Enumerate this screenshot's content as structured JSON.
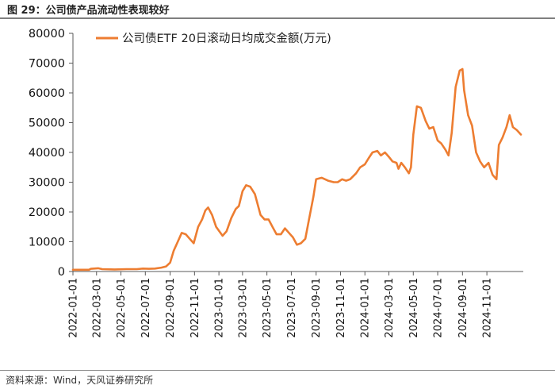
{
  "figure_title": "图 29：公司债产品流动性表现较好",
  "source_note": "资料来源：Wind，天风证券研究所",
  "chart_data": {
    "type": "line",
    "title": "",
    "xlabel": "",
    "ylabel": "",
    "ylim": [
      0,
      80000
    ],
    "yticks": [
      0,
      10000,
      20000,
      30000,
      40000,
      50000,
      60000,
      70000,
      80000
    ],
    "xlim": [
      "2022-01-01",
      "2025-01-31"
    ],
    "xticks": [
      "2022-01-01",
      "2022-03-01",
      "2022-05-01",
      "2022-07-01",
      "2022-09-01",
      "2022-11-01",
      "2023-01-01",
      "2023-03-01",
      "2023-05-01",
      "2023-07-01",
      "2023-09-01",
      "2023-11-01",
      "2024-01-01",
      "2024-03-01",
      "2024-05-01",
      "2024-07-01",
      "2024-09-01",
      "2024-11-01"
    ],
    "grid": false,
    "legend_position": "top",
    "series": [
      {
        "name": "公司债ETF 20日滚动日均成交金额(万元)",
        "color": "#ED7D31",
        "x": [
          "2022-01-01",
          "2022-02-10",
          "2022-02-15",
          "2022-03-05",
          "2022-03-15",
          "2022-04-15",
          "2022-05-15",
          "2022-06-10",
          "2022-06-25",
          "2022-07-10",
          "2022-07-25",
          "2022-08-10",
          "2022-08-22",
          "2022-09-01",
          "2022-09-10",
          "2022-09-20",
          "2022-09-30",
          "2022-10-10",
          "2022-10-20",
          "2022-10-30",
          "2022-11-10",
          "2022-11-20",
          "2022-11-28",
          "2022-12-05",
          "2022-12-15",
          "2022-12-25",
          "2023-01-10",
          "2023-01-20",
          "2023-02-01",
          "2023-02-12",
          "2023-02-20",
          "2023-03-01",
          "2023-03-10",
          "2023-03-20",
          "2023-04-01",
          "2023-04-15",
          "2023-04-25",
          "2023-05-05",
          "2023-05-15",
          "2023-05-25",
          "2023-06-05",
          "2023-06-15",
          "2023-06-25",
          "2023-07-05",
          "2023-07-15",
          "2023-07-25",
          "2023-08-05",
          "2023-08-15",
          "2023-08-25",
          "2023-09-01",
          "2023-09-15",
          "2023-10-01",
          "2023-10-15",
          "2023-10-25",
          "2023-11-05",
          "2023-11-15",
          "2023-11-25",
          "2023-12-10",
          "2023-12-20",
          "2024-01-01",
          "2024-01-10",
          "2024-01-20",
          "2024-02-01",
          "2024-02-10",
          "2024-02-20",
          "2024-03-01",
          "2024-03-10",
          "2024-03-20",
          "2024-03-25",
          "2024-04-01",
          "2024-04-10",
          "2024-04-20",
          "2024-04-25",
          "2024-05-01",
          "2024-05-10",
          "2024-05-20",
          "2024-06-01",
          "2024-06-10",
          "2024-06-20",
          "2024-07-01",
          "2024-07-10",
          "2024-07-20",
          "2024-07-28",
          "2024-08-05",
          "2024-08-15",
          "2024-08-25",
          "2024-09-01",
          "2024-09-05",
          "2024-09-15",
          "2024-09-25",
          "2024-10-05",
          "2024-10-15",
          "2024-10-25",
          "2024-11-05",
          "2024-11-15",
          "2024-11-25",
          "2024-12-01",
          "2024-12-10",
          "2024-12-20",
          "2024-12-28",
          "2025-01-05",
          "2025-01-15",
          "2025-01-25"
        ],
        "values": [
          600,
          600,
          900,
          1100,
          800,
          700,
          800,
          800,
          1000,
          900,
          1000,
          1300,
          1700,
          3000,
          7000,
          10000,
          13000,
          12500,
          11000,
          9500,
          15000,
          17500,
          20500,
          21500,
          19000,
          15000,
          12000,
          13500,
          18000,
          21000,
          22000,
          27000,
          29000,
          28500,
          26000,
          19000,
          17500,
          17500,
          15000,
          12500,
          12500,
          14500,
          13000,
          11500,
          9000,
          9500,
          11000,
          18000,
          25000,
          31000,
          31500,
          30500,
          30000,
          30000,
          31000,
          30500,
          31000,
          33000,
          35000,
          36000,
          38000,
          40000,
          40500,
          39000,
          40000,
          38500,
          37000,
          36500,
          34500,
          36500,
          35000,
          33000,
          35000,
          46000,
          55500,
          55000,
          50500,
          48000,
          48500,
          44000,
          43000,
          41000,
          39000,
          46500,
          62000,
          67500,
          68000,
          61000,
          52500,
          49000,
          40000,
          37000,
          35000,
          36500,
          32500,
          31000,
          42500,
          45000,
          48500,
          52500,
          48500,
          47500,
          46000
        ]
      }
    ]
  }
}
